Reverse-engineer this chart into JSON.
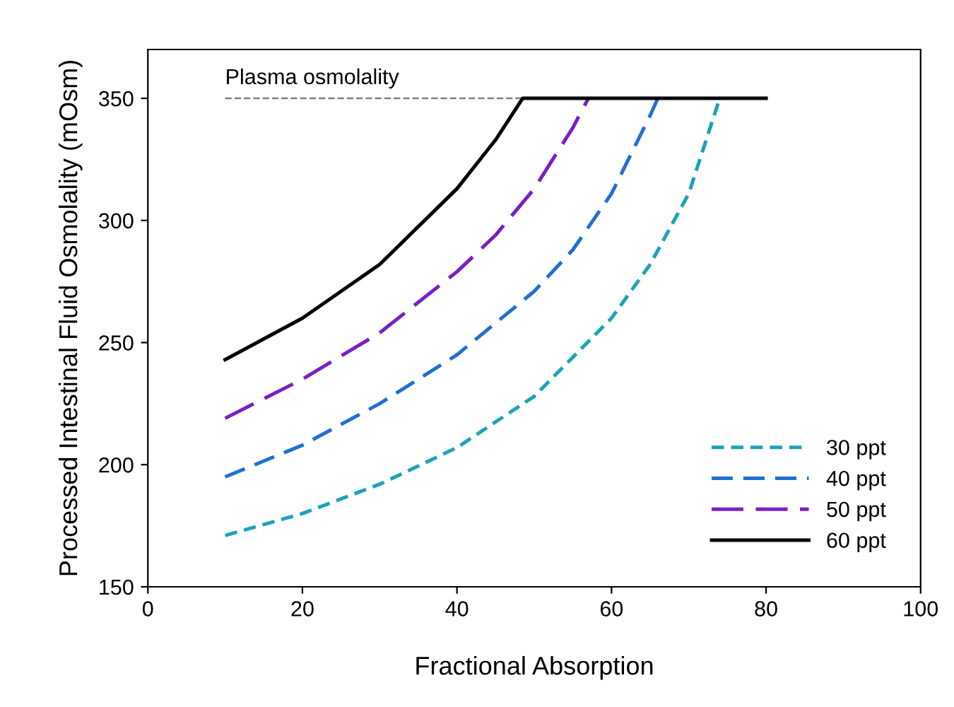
{
  "chart_data": {
    "type": "line",
    "xlabel": "Fractional Absorption",
    "ylabel": "Processed Intestinal Fluid Osmolality (mOsm)",
    "xlim": [
      0,
      100
    ],
    "xticks": [
      0,
      20,
      40,
      60,
      80,
      100
    ],
    "ylim": [
      150,
      370
    ],
    "yticks": [
      150,
      200,
      250,
      300,
      350
    ],
    "grid": false,
    "legend": "bottom right",
    "marker": "none",
    "ref_lines": [
      {
        "axis": "y",
        "value": 350,
        "label": "Plasma osmolality",
        "color": "#808080",
        "line_style": "dashed"
      }
    ],
    "series": [
      {
        "name": "30 ppt",
        "color": "#1ba3b8",
        "line_style": "dashed",
        "x": [
          10,
          20,
          30,
          40,
          50,
          60,
          65,
          70,
          74
        ],
        "values": [
          171,
          180,
          192,
          207,
          228,
          260,
          282,
          311,
          350
        ]
      },
      {
        "name": "40 ppt",
        "color": "#1f6fd6",
        "line_style": "dashed",
        "x": [
          10,
          20,
          30,
          40,
          50,
          55,
          60,
          65,
          66
        ],
        "values": [
          195,
          208,
          225,
          245,
          271,
          288,
          311,
          343,
          350
        ]
      },
      {
        "name": "50 ppt",
        "color": "#7a1fc4",
        "line_style": "dashed",
        "x": [
          10,
          20,
          30,
          40,
          45,
          50,
          55,
          57
        ],
        "values": [
          219,
          235,
          254,
          279,
          294,
          313,
          338,
          350
        ]
      },
      {
        "name": "60 ppt",
        "color": "#000000",
        "line_style": "solid",
        "x": [
          10,
          20,
          30,
          40,
          45,
          48.5,
          80
        ],
        "values": [
          243,
          260,
          282,
          313,
          333,
          350,
          350
        ]
      }
    ]
  }
}
